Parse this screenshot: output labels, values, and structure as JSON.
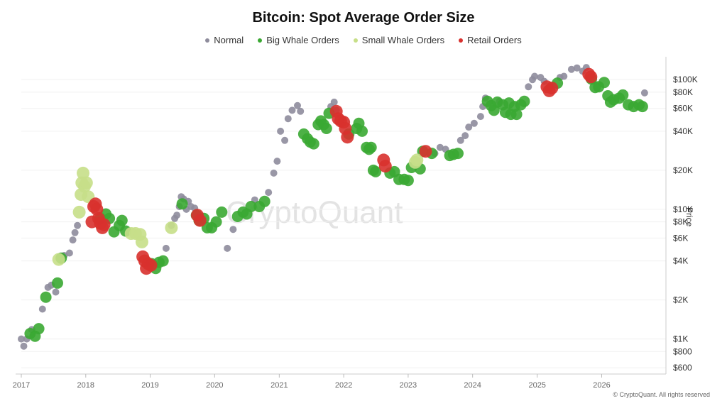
{
  "chart_data": {
    "type": "scatter",
    "title": "Bitcoin: Spot Average Order Size",
    "ylabel": "Price",
    "yscale": "log",
    "ylim": [
      550,
      150000
    ],
    "xlim": [
      "2017-01-01",
      "2026-12-31"
    ],
    "x_ticks": [
      "2017",
      "2018",
      "2019",
      "2020",
      "2021",
      "2022",
      "2023",
      "2024",
      "2025",
      "2026"
    ],
    "y_ticks": [
      {
        "value": 100000,
        "label": "$100K"
      },
      {
        "value": 80000,
        "label": "$80K"
      },
      {
        "value": 60000,
        "label": "$60K"
      },
      {
        "value": 40000,
        "label": "$40K"
      },
      {
        "value": 20000,
        "label": "$20K"
      },
      {
        "value": 10000,
        "label": "$10K"
      },
      {
        "value": 8000,
        "label": "$8K"
      },
      {
        "value": 6000,
        "label": "$6K"
      },
      {
        "value": 4000,
        "label": "$4K"
      },
      {
        "value": 2000,
        "label": "$2K"
      },
      {
        "value": 1000,
        "label": "$1K"
      },
      {
        "value": 800,
        "label": "$800"
      },
      {
        "value": 600,
        "label": "$600"
      }
    ],
    "legend_position": "top-center",
    "grid": true,
    "colors": {
      "Normal": "#8e8c9c",
      "Big Whale Orders": "#3aa832",
      "Small Whale Orders": "#c7df88",
      "Retail Orders": "#d8312e"
    },
    "series": [
      {
        "name": "Normal",
        "points": [
          [
            "2017-01-01",
            1000
          ],
          [
            "2017-01-15",
            880
          ],
          [
            "2017-02-01",
            1000
          ],
          [
            "2017-03-01",
            1180
          ],
          [
            "2017-05-01",
            1700
          ],
          [
            "2017-06-01",
            2500
          ],
          [
            "2017-06-20",
            2600
          ],
          [
            "2017-07-15",
            2300
          ],
          [
            "2017-09-01",
            4400
          ],
          [
            "2017-10-01",
            4600
          ],
          [
            "2017-10-20",
            5800
          ],
          [
            "2017-11-01",
            6600
          ],
          [
            "2017-11-15",
            7500
          ],
          [
            "2019-03-01",
            3900
          ],
          [
            "2019-04-01",
            5000
          ],
          [
            "2019-05-01",
            7500
          ],
          [
            "2019-05-20",
            8500
          ],
          [
            "2019-06-01",
            9000
          ],
          [
            "2019-06-15",
            10500
          ],
          [
            "2019-06-26",
            12500
          ],
          [
            "2019-07-10",
            12000
          ],
          [
            "2019-07-25",
            10000
          ],
          [
            "2019-08-05",
            11500
          ],
          [
            "2019-08-20",
            10500
          ],
          [
            "2019-09-10",
            10200
          ],
          [
            "2020-03-13",
            5000
          ],
          [
            "2020-04-15",
            7000
          ],
          [
            "2020-08-15",
            11800
          ],
          [
            "2020-11-01",
            13500
          ],
          [
            "2020-12-01",
            19000
          ],
          [
            "2020-12-20",
            23500
          ],
          [
            "2021-01-08",
            40000
          ],
          [
            "2021-02-01",
            34000
          ],
          [
            "2021-02-20",
            50000
          ],
          [
            "2021-03-15",
            58000
          ],
          [
            "2021-04-14",
            63000
          ],
          [
            "2021-05-01",
            57000
          ],
          [
            "2021-10-20",
            62000
          ],
          [
            "2021-11-08",
            67000
          ],
          [
            "2021-11-20",
            58000
          ],
          [
            "2023-06-01",
            27000
          ],
          [
            "2023-07-01",
            30000
          ],
          [
            "2023-08-01",
            29000
          ],
          [
            "2023-10-25",
            34000
          ],
          [
            "2023-11-20",
            37000
          ],
          [
            "2023-12-10",
            43000
          ],
          [
            "2024-01-10",
            46000
          ],
          [
            "2024-02-15",
            52000
          ],
          [
            "2024-02-28",
            62000
          ],
          [
            "2024-03-14",
            72000
          ],
          [
            "2024-06-01",
            68000
          ],
          [
            "2024-11-12",
            88000
          ],
          [
            "2024-12-05",
            100000
          ],
          [
            "2024-12-17",
            106000
          ],
          [
            "2025-01-20",
            104000
          ],
          [
            "2025-02-10",
            97000
          ],
          [
            "2025-05-10",
            104000
          ],
          [
            "2025-06-01",
            106000
          ],
          [
            "2025-07-14",
            120000
          ],
          [
            "2025-08-14",
            123000
          ],
          [
            "2025-09-15",
            116000
          ],
          [
            "2025-10-06",
            124000
          ],
          [
            "2026-09-01",
            79000
          ]
        ]
      },
      {
        "name": "Big Whale Orders",
        "points": [
          [
            "2017-02-20",
            1100
          ],
          [
            "2017-03-20",
            1050
          ],
          [
            "2017-04-10",
            1200
          ],
          [
            "2017-05-20",
            2100
          ],
          [
            "2017-07-25",
            2700
          ],
          [
            "2017-08-15",
            4200
          ],
          [
            "2018-03-25",
            8500
          ],
          [
            "2018-04-25",
            9200
          ],
          [
            "2018-05-15",
            8500
          ],
          [
            "2018-06-10",
            6700
          ],
          [
            "2018-07-10",
            7500
          ],
          [
            "2018-07-25",
            8200
          ],
          [
            "2018-08-15",
            6800
          ],
          [
            "2019-01-10",
            3800
          ],
          [
            "2019-02-01",
            3500
          ],
          [
            "2019-02-20",
            3900
          ],
          [
            "2019-03-15",
            4000
          ],
          [
            "2019-07-01",
            11000
          ],
          [
            "2019-09-20",
            9000
          ],
          [
            "2019-10-05",
            8200
          ],
          [
            "2019-11-01",
            8500
          ],
          [
            "2019-11-20",
            7200
          ],
          [
            "2019-12-15",
            7200
          ],
          [
            "2020-01-10",
            8000
          ],
          [
            "2020-02-10",
            9500
          ],
          [
            "2020-05-10",
            8800
          ],
          [
            "2020-06-10",
            9500
          ],
          [
            "2020-07-01",
            9200
          ],
          [
            "2020-07-25",
            10500
          ],
          [
            "2020-09-10",
            10500
          ],
          [
            "2020-10-10",
            11500
          ],
          [
            "2021-05-20",
            38000
          ],
          [
            "2021-06-10",
            35000
          ],
          [
            "2021-06-25",
            33000
          ],
          [
            "2021-07-15",
            32000
          ],
          [
            "2021-08-10",
            45000
          ],
          [
            "2021-08-25",
            48000
          ],
          [
            "2021-09-10",
            45000
          ],
          [
            "2021-09-25",
            42000
          ],
          [
            "2021-10-10",
            55000
          ],
          [
            "2022-01-30",
            38000
          ],
          [
            "2022-03-15",
            42000
          ],
          [
            "2022-03-28",
            46000
          ],
          [
            "2022-04-15",
            40000
          ],
          [
            "2022-05-10",
            30000
          ],
          [
            "2022-05-25",
            29000
          ],
          [
            "2022-06-05",
            30000
          ],
          [
            "2022-06-18",
            20000
          ],
          [
            "2022-07-01",
            19500
          ],
          [
            "2022-09-20",
            19000
          ],
          [
            "2022-10-15",
            19500
          ],
          [
            "2022-11-10",
            17000
          ],
          [
            "2022-12-10",
            17000
          ],
          [
            "2023-01-01",
            16700
          ],
          [
            "2023-01-20",
            21000
          ],
          [
            "2023-03-10",
            20500
          ],
          [
            "2023-03-25",
            28000
          ],
          [
            "2023-05-15",
            27000
          ],
          [
            "2023-08-25",
            26000
          ],
          [
            "2023-09-15",
            26500
          ],
          [
            "2023-10-10",
            27000
          ],
          [
            "2024-03-25",
            68000
          ],
          [
            "2024-04-15",
            63000
          ],
          [
            "2024-05-01",
            58000
          ],
          [
            "2024-05-20",
            67000
          ],
          [
            "2024-06-20",
            64000
          ],
          [
            "2024-07-05",
            56000
          ],
          [
            "2024-07-25",
            66000
          ],
          [
            "2024-08-05",
            54000
          ],
          [
            "2024-08-25",
            62000
          ],
          [
            "2024-09-06",
            54000
          ],
          [
            "2024-09-30",
            64000
          ],
          [
            "2024-10-20",
            68000
          ],
          [
            "2025-04-25",
            94000
          ],
          [
            "2025-11-04",
            101000
          ],
          [
            "2025-11-25",
            87000
          ],
          [
            "2025-12-15",
            88000
          ],
          [
            "2026-01-15",
            95000
          ],
          [
            "2026-02-05",
            75000
          ],
          [
            "2026-02-20",
            67000
          ],
          [
            "2026-03-10",
            70000
          ],
          [
            "2026-04-10",
            72000
          ],
          [
            "2026-05-01",
            76000
          ],
          [
            "2026-06-01",
            64000
          ],
          [
            "2026-07-01",
            62000
          ],
          [
            "2026-08-01",
            64000
          ],
          [
            "2026-08-20",
            62000
          ]
        ]
      },
      {
        "name": "Small Whale Orders",
        "points": [
          [
            "2017-08-01",
            4100
          ],
          [
            "2017-11-25",
            9500
          ],
          [
            "2017-12-05",
            13000
          ],
          [
            "2017-12-10",
            16000
          ],
          [
            "2017-12-17",
            19000
          ],
          [
            "2017-12-25",
            15000
          ],
          [
            "2018-01-05",
            16000
          ],
          [
            "2018-01-15",
            12500
          ],
          [
            "2018-09-15",
            6500
          ],
          [
            "2018-10-10",
            6500
          ],
          [
            "2018-11-05",
            6400
          ],
          [
            "2018-11-15",
            5600
          ],
          [
            "2019-05-01",
            7200
          ],
          [
            "2023-02-10",
            23000
          ],
          [
            "2023-02-20",
            24000
          ]
        ]
      },
      {
        "name": "Retail Orders",
        "points": [
          [
            "2018-02-05",
            8000
          ],
          [
            "2018-02-15",
            10500
          ],
          [
            "2018-02-25",
            11000
          ],
          [
            "2018-03-05",
            10000
          ],
          [
            "2018-03-15",
            8500
          ],
          [
            "2018-03-25",
            7800
          ],
          [
            "2018-04-05",
            7200
          ],
          [
            "2018-04-15",
            7600
          ],
          [
            "2018-11-20",
            4300
          ],
          [
            "2018-12-01",
            4000
          ],
          [
            "2018-12-10",
            3500
          ],
          [
            "2018-12-20",
            3800
          ],
          [
            "2019-01-05",
            3700
          ],
          [
            "2019-09-25",
            9000
          ],
          [
            "2019-10-10",
            8200
          ],
          [
            "2021-11-20",
            57000
          ],
          [
            "2021-12-01",
            50000
          ],
          [
            "2021-12-15",
            48000
          ],
          [
            "2022-01-01",
            47000
          ],
          [
            "2022-01-10",
            42000
          ],
          [
            "2022-01-22",
            36000
          ],
          [
            "2022-08-15",
            24000
          ],
          [
            "2022-08-25",
            21500
          ],
          [
            "2023-04-10",
            28000
          ],
          [
            "2025-02-25",
            88000
          ],
          [
            "2025-03-10",
            82000
          ],
          [
            "2025-03-25",
            86000
          ],
          [
            "2025-10-20",
            110000
          ],
          [
            "2025-11-01",
            105000
          ]
        ]
      }
    ]
  },
  "footer": "© CryptoQuant. All rights reserved",
  "watermark": "CryptoQuant"
}
